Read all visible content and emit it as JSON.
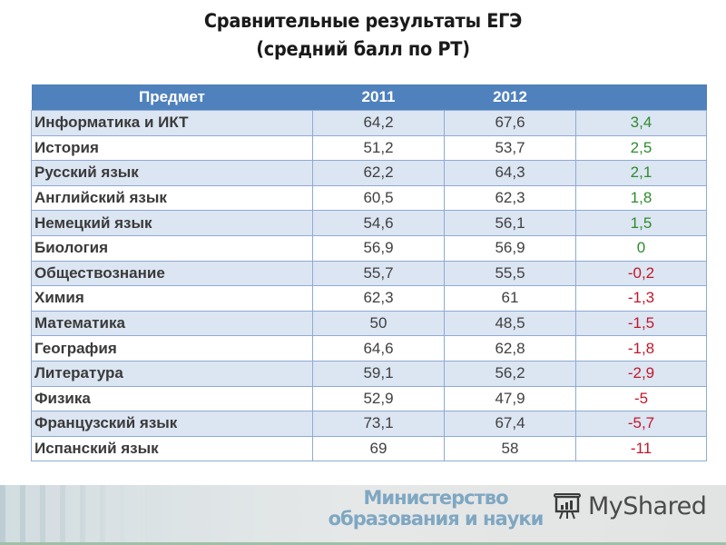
{
  "title": {
    "line1": "Сравнительные результаты ЕГЭ",
    "line2": "(средний балл по РТ)"
  },
  "table": {
    "headers": [
      "Предмет",
      "2011",
      "2012",
      ""
    ],
    "rows": [
      {
        "subject": "Информатика и ИКТ",
        "y2011": "64,2",
        "y2012": "67,6",
        "diff": "3,4",
        "trend": "pos"
      },
      {
        "subject": "История",
        "y2011": "51,2",
        "y2012": "53,7",
        "diff": "2,5",
        "trend": "pos"
      },
      {
        "subject": "Русский язык",
        "y2011": "62,2",
        "y2012": "64,3",
        "diff": "2,1",
        "trend": "pos"
      },
      {
        "subject": "Английский язык",
        "y2011": "60,5",
        "y2012": "62,3",
        "diff": "1,8",
        "trend": "pos"
      },
      {
        "subject": "Немецкий язык",
        "y2011": "54,6",
        "y2012": "56,1",
        "diff": "1,5",
        "trend": "pos"
      },
      {
        "subject": "Биология",
        "y2011": "56,9",
        "y2012": "56,9",
        "diff": "0",
        "trend": "pos"
      },
      {
        "subject": "Обществознание",
        "y2011": "55,7",
        "y2012": "55,5",
        "diff": "-0,2",
        "trend": "neg"
      },
      {
        "subject": "Химия",
        "y2011": "62,3",
        "y2012": "61",
        "diff": "-1,3",
        "trend": "neg"
      },
      {
        "subject": "Математика",
        "y2011": "50",
        "y2012": "48,5",
        "diff": "-1,5",
        "trend": "neg"
      },
      {
        "subject": "География",
        "y2011": "64,6",
        "y2012": "62,8",
        "diff": "-1,8",
        "trend": "neg"
      },
      {
        "subject": "Литература",
        "y2011": "59,1",
        "y2012": "56,2",
        "diff": "-2,9",
        "trend": "neg"
      },
      {
        "subject": "Физика",
        "y2011": "52,9",
        "y2012": "47,9",
        "diff": "-5",
        "trend": "neg"
      },
      {
        "subject": "Французский язык",
        "y2011": "73,1",
        "y2012": "67,4",
        "diff": "-5,7",
        "trend": "neg"
      },
      {
        "subject": "Испанский язык",
        "y2011": "69",
        "y2012": "58",
        "diff": "-11",
        "trend": "neg"
      }
    ]
  },
  "colors": {
    "header_bg": "#4f81bd",
    "row_band": "#dce5f2",
    "positive": "#2e8b2e",
    "negative": "#c0182b"
  },
  "footer": {
    "ministry_line1": "Министерство",
    "ministry_line2": "образования и науки",
    "brand": "MyShared",
    "brand_icon": "presentation-board-icon"
  }
}
